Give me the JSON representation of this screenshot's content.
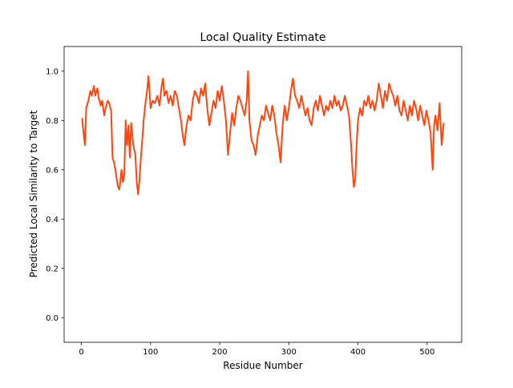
{
  "chart_data": {
    "type": "line",
    "title": "Local Quality Estimate",
    "x_label": "Residue Number",
    "y_label": "Predicted Local Similarity to Target",
    "xlim": [
      -25,
      550
    ],
    "ylim": [
      -0.1,
      1.1
    ],
    "xticks": [
      0,
      100,
      200,
      300,
      400,
      500
    ],
    "yticks": [
      {
        "value": 0,
        "label": "0.0"
      },
      {
        "value": 0.2,
        "label": "0.2"
      },
      {
        "value": 0.4,
        "label": "0.4"
      },
      {
        "value": 0.6,
        "label": "0.6"
      },
      {
        "value": 0.8,
        "label": "0.8"
      },
      {
        "value": 1,
        "label": "1.0"
      }
    ],
    "grid": false,
    "series": [
      {
        "color": "#ff4610",
        "x": [
          1,
          3,
          5,
          7,
          10,
          13,
          15,
          18,
          20,
          23,
          25,
          28,
          30,
          33,
          35,
          38,
          40,
          43,
          45,
          48,
          50,
          53,
          55,
          58,
          60,
          62,
          64,
          66,
          68,
          70,
          72,
          75,
          78,
          80,
          82,
          84,
          86,
          88,
          90,
          93,
          95,
          97,
          100,
          103,
          106,
          110,
          113,
          116,
          118,
          120,
          123,
          126,
          129,
          132,
          135,
          138,
          141,
          144,
          147,
          149,
          152,
          155,
          158,
          161,
          164,
          167,
          170,
          173,
          176,
          179,
          182,
          185,
          188,
          191,
          194,
          197,
          200,
          203,
          206,
          209,
          212,
          215,
          218,
          221,
          224,
          227,
          230,
          233,
          236,
          239,
          241,
          243,
          246,
          249,
          252,
          255,
          258,
          261,
          264,
          267,
          270,
          273,
          276,
          279,
          282,
          285,
          288,
          291,
          294,
          297,
          300,
          303,
          306,
          309,
          312,
          315,
          318,
          321,
          324,
          327,
          330,
          333,
          336,
          339,
          342,
          345,
          348,
          351,
          354,
          357,
          360,
          363,
          366,
          369,
          372,
          375,
          378,
          381,
          384,
          387,
          390,
          392,
          394,
          396,
          398,
          400,
          403,
          406,
          409,
          412,
          415,
          418,
          421,
          424,
          427,
          430,
          433,
          436,
          439,
          442,
          445,
          448,
          451,
          454,
          457,
          460,
          463,
          466,
          469,
          472,
          475,
          478,
          481,
          484,
          487,
          490,
          493,
          496,
          499,
          502,
          505,
          508,
          510,
          512,
          515,
          518,
          521,
          524
        ],
        "values": [
          0.81,
          0.75,
          0.7,
          0.85,
          0.88,
          0.92,
          0.9,
          0.94,
          0.9,
          0.93,
          0.89,
          0.86,
          0.88,
          0.82,
          0.85,
          0.88,
          0.87,
          0.84,
          0.65,
          0.62,
          0.58,
          0.53,
          0.52,
          0.6,
          0.55,
          0.58,
          0.8,
          0.7,
          0.78,
          0.65,
          0.79,
          0.7,
          0.66,
          0.55,
          0.5,
          0.56,
          0.65,
          0.72,
          0.8,
          0.88,
          0.92,
          0.98,
          0.85,
          0.88,
          0.87,
          0.9,
          0.86,
          0.94,
          0.97,
          0.9,
          0.92,
          0.87,
          0.9,
          0.86,
          0.92,
          0.9,
          0.85,
          0.8,
          0.73,
          0.7,
          0.78,
          0.82,
          0.8,
          0.88,
          0.92,
          0.9,
          0.87,
          0.93,
          0.9,
          0.95,
          0.85,
          0.78,
          0.83,
          0.88,
          0.85,
          0.92,
          0.88,
          0.94,
          0.88,
          0.8,
          0.66,
          0.75,
          0.83,
          0.78,
          0.85,
          0.9,
          0.88,
          0.85,
          0.82,
          0.88,
          1.0,
          0.8,
          0.72,
          0.7,
          0.66,
          0.74,
          0.78,
          0.82,
          0.8,
          0.86,
          0.83,
          0.8,
          0.86,
          0.82,
          0.75,
          0.7,
          0.63,
          0.78,
          0.86,
          0.8,
          0.85,
          0.92,
          0.97,
          0.9,
          0.88,
          0.85,
          0.9,
          0.86,
          0.82,
          0.85,
          0.8,
          0.78,
          0.85,
          0.88,
          0.84,
          0.9,
          0.86,
          0.82,
          0.86,
          0.84,
          0.88,
          0.85,
          0.9,
          0.86,
          0.88,
          0.84,
          0.86,
          0.9,
          0.86,
          0.82,
          0.7,
          0.6,
          0.53,
          0.56,
          0.7,
          0.8,
          0.85,
          0.82,
          0.88,
          0.86,
          0.9,
          0.85,
          0.88,
          0.84,
          0.88,
          0.95,
          0.9,
          0.85,
          0.92,
          0.88,
          0.95,
          0.92,
          0.9,
          0.86,
          0.9,
          0.84,
          0.82,
          0.88,
          0.84,
          0.8,
          0.86,
          0.82,
          0.88,
          0.85,
          0.8,
          0.86,
          0.82,
          0.78,
          0.84,
          0.8,
          0.75,
          0.6,
          0.78,
          0.82,
          0.76,
          0.87,
          0.7,
          0.79
        ]
      }
    ]
  }
}
